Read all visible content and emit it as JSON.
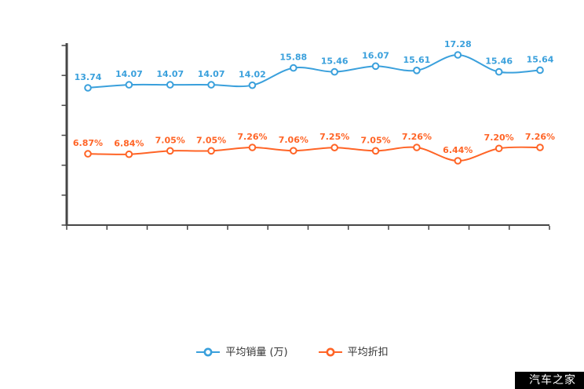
{
  "watermark": "汽车之家",
  "colors": {
    "axis": "#464646",
    "blue": "#3aa0dc",
    "orange": "#ff6426",
    "legend_text": "#333333",
    "marker_fill": "#ffffff"
  },
  "legend": {
    "items": [
      {
        "name": "平均销量 (万)",
        "color": "#3aa0dc"
      },
      {
        "name": "平均折扣",
        "color": "#ff6426"
      }
    ]
  },
  "chart_data": {
    "type": "line",
    "smooth": true,
    "grid": false,
    "legend_position": "bottom",
    "x_tick_labels": [],
    "x_count": 12,
    "series": [
      {
        "name": "平均销量 (万)",
        "color": "#3aa0dc",
        "values": [
          13.74,
          14.07,
          14.07,
          14.07,
          14.02,
          15.88,
          15.46,
          16.07,
          15.61,
          17.28,
          15.46,
          15.64
        ],
        "labels": [
          "13.74",
          "14.07",
          "14.07",
          "14.07",
          "14.02",
          "15.88",
          "15.46",
          "16.07",
          "15.61",
          "17.28",
          "15.46",
          "15.64"
        ]
      },
      {
        "name": "平均折扣",
        "color": "#ff6426",
        "values": [
          6.87,
          6.84,
          7.05,
          7.05,
          7.26,
          7.06,
          7.25,
          7.05,
          7.26,
          6.44,
          7.2,
          7.26
        ],
        "labels": [
          "6.87%",
          "6.84%",
          "7.05%",
          "7.05%",
          "7.26%",
          "7.06%",
          "7.25%",
          "7.05%",
          "7.26%",
          "6.44%",
          "7.20%",
          "7.26%"
        ]
      }
    ]
  }
}
